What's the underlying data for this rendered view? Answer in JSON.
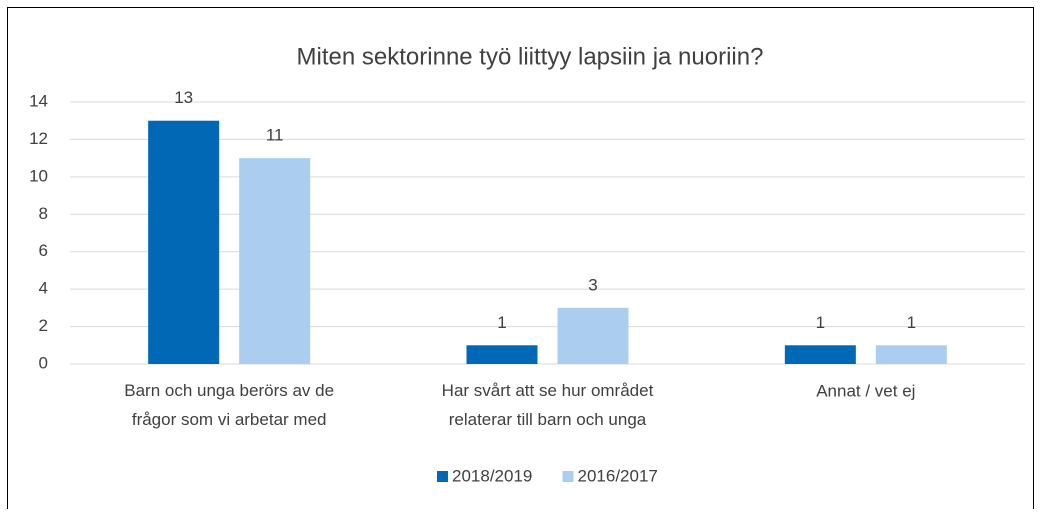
{
  "chart_data": {
    "type": "bar",
    "title": "Miten sektorinne työ liittyy lapsiin ja nuoriin?",
    "categories": [
      "Barn och unga berörs av de frågor som vi arbetar med",
      "Har svårt att se hur området relaterar till barn och unga",
      "Annat / vet ej"
    ],
    "series": [
      {
        "name": "2018/2019",
        "color": "#0068b5",
        "values": [
          13,
          1,
          1
        ]
      },
      {
        "name": "2016/2017",
        "color": "#abcdf0",
        "values": [
          11,
          3,
          1
        ]
      }
    ],
    "ylim": [
      0,
      14
    ],
    "yticks": [
      0,
      2,
      4,
      6,
      8,
      10,
      12,
      14
    ],
    "grid": true,
    "legend": "bottom"
  }
}
